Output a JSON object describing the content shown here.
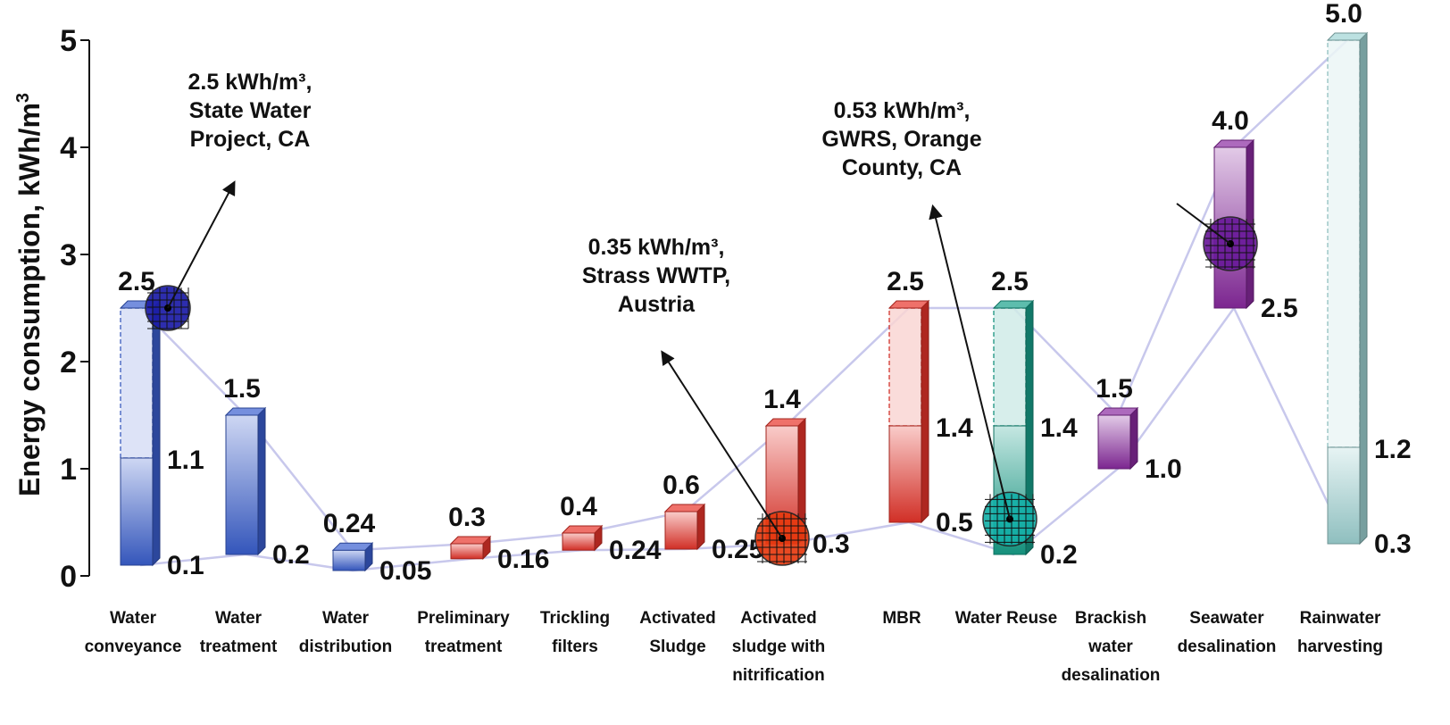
{
  "chart_data": {
    "type": "bar",
    "title": "",
    "ylabel": "Energy consumption, kWh/m",
    "ylabel_sup": "3",
    "ylim": [
      0,
      5
    ],
    "yticks": [
      "0",
      "1",
      "2",
      "3",
      "4",
      "5"
    ],
    "grid": false,
    "categories": [
      {
        "lines": [
          "Water",
          "conveyance"
        ],
        "low": 0.1,
        "high": 2.5,
        "mid": 1.1,
        "low_label": "0.1",
        "high_label": "2.5",
        "mid_label": "1.1",
        "color": "#3a5fd0"
      },
      {
        "lines": [
          "Water",
          "treatment"
        ],
        "low": 0.2,
        "high": 1.5,
        "low_label": "0.2",
        "high_label": "1.5",
        "color": "#3a5fd0"
      },
      {
        "lines": [
          "Water",
          "distribution"
        ],
        "low": 0.05,
        "high": 0.24,
        "low_label": "0.05",
        "high_label": "0.24",
        "color": "#3a5fd0"
      },
      {
        "lines": [
          "Preliminary",
          "treatment"
        ],
        "low": 0.16,
        "high": 0.3,
        "low_label": "0.16",
        "high_label": "0.3",
        "color": "#e8342a"
      },
      {
        "lines": [
          "Trickling",
          "filters"
        ],
        "low": 0.24,
        "high": 0.4,
        "low_label": "0.24",
        "high_label": "0.4",
        "color": "#e8342a"
      },
      {
        "lines": [
          "Activated",
          "Sludge"
        ],
        "low": 0.25,
        "high": 0.6,
        "low_label": "0.25",
        "high_label": "0.6",
        "color": "#e8342a"
      },
      {
        "lines": [
          "Activated",
          "sludge with",
          "nitrification"
        ],
        "low": 0.3,
        "high": 1.4,
        "low_label": "0.3",
        "high_label": "1.4",
        "color": "#e8342a"
      },
      {
        "lines": [
          "MBR"
        ],
        "low": 0.5,
        "high": 2.5,
        "mid": 1.4,
        "low_label": "0.5",
        "high_label": "2.5",
        "mid_label": "1.4",
        "color": "#e8342a"
      },
      {
        "lines": [
          "Water Reuse"
        ],
        "low": 0.2,
        "high": 2.5,
        "mid": 1.4,
        "low_label": "0.2",
        "high_label": "2.5",
        "mid_label": "1.4",
        "color": "#17a08a"
      },
      {
        "lines": [
          "Brackish",
          "water",
          "desalination"
        ],
        "low": 1.0,
        "high": 1.5,
        "low_label": "1.0",
        "high_label": "1.5",
        "color": "#8a2aa0"
      },
      {
        "lines": [
          "Seawater",
          "desalination"
        ],
        "low": 2.5,
        "high": 4.0,
        "low_label": "2.5",
        "high_label": "4.0",
        "color": "#8a2aa0"
      },
      {
        "lines": [
          "Rainwater",
          "harvesting"
        ],
        "low": 0.3,
        "high": 5.0,
        "mid": 1.2,
        "low_label": "0.3",
        "high_label": "5.0",
        "mid_label": "1.2",
        "color": "#9fd4d4"
      }
    ],
    "annotations": [
      {
        "lines": [
          "2.5 kWh/m³,",
          "State Water",
          "Project, CA"
        ],
        "category_index": 0,
        "value": 2.5
      },
      {
        "lines": [
          "0.35 kWh/m³,",
          "Strass WWTP,",
          "Austria"
        ],
        "category_index": 6,
        "value": 0.35
      },
      {
        "lines": [
          "0.53 kWh/m³,",
          "GWRS, Orange",
          "County, CA"
        ],
        "category_index": 8,
        "value": 0.53
      },
      {
        "lines": [],
        "category_index": 10,
        "value": 3.1
      }
    ]
  },
  "colors": {
    "line": "#c8c8ec",
    "axis": "#111111",
    "marker_blue": "#1c1ca8",
    "marker_red": "#e83a10",
    "marker_teal": "#14b0a8",
    "marker_purple": "#6a1a9a"
  }
}
